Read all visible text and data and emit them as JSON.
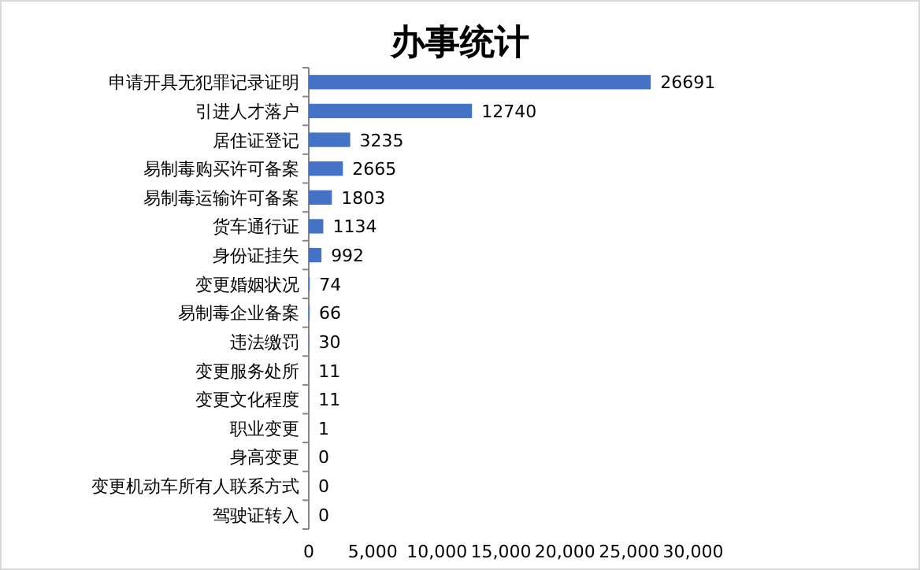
{
  "chart_data": {
    "type": "bar",
    "orientation": "horizontal",
    "title": "办事统计",
    "categories": [
      "申请开具无犯罪记录证明",
      "引进人才落户",
      "居住证登记",
      "易制毒购买许可备案",
      "易制毒运输许可备案",
      "货车通行证",
      "身份证挂失",
      "变更婚姻状况",
      "易制毒企业备案",
      "违法缴罚",
      "变更服务处所",
      "变更文化程度",
      "职业变更",
      "身高变更",
      "变更机动车所有人联系方式",
      "驾驶证转入"
    ],
    "values": [
      26691,
      12740,
      3235,
      2665,
      1803,
      1134,
      992,
      74,
      66,
      30,
      11,
      11,
      1,
      0,
      0,
      0
    ],
    "color": "#4472c4",
    "data_labels": true,
    "xlim": [
      0,
      30000
    ],
    "xticks": [
      0,
      {
        "value": 5000,
        "label": "5,000"
      },
      {
        "value": 10000,
        "label": "10,000"
      },
      {
        "value": 15000,
        "label": "15,000"
      },
      {
        "value": 20000,
        "label": "20,000"
      },
      {
        "value": 25000,
        "label": "25,000"
      },
      {
        "value": 30000,
        "label": "30,000"
      }
    ],
    "grid": false
  }
}
